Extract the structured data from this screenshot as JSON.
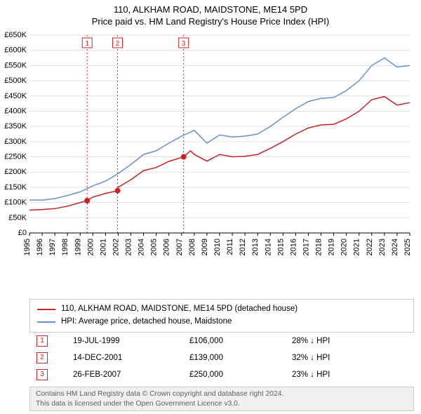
{
  "title": {
    "line1": "110, ALKHAM ROAD, MAIDSTONE, ME14 5PD",
    "line2": "Price paid vs. HM Land Registry's House Price Index (HPI)",
    "fontsize": 13,
    "color": "#000000"
  },
  "chart": {
    "type": "line",
    "background_color": "#ffffff",
    "x": {
      "min": 1995,
      "max": 2025,
      "ticks": [
        1995,
        1996,
        1997,
        1998,
        1999,
        2000,
        2001,
        2002,
        2003,
        2004,
        2005,
        2006,
        2007,
        2008,
        2009,
        2010,
        2011,
        2012,
        2013,
        2014,
        2015,
        2016,
        2017,
        2018,
        2019,
        2020,
        2021,
        2022,
        2023,
        2024,
        2025
      ],
      "tick_fontsize": 11,
      "tick_rotation": -90
    },
    "y": {
      "min": 0,
      "max": 650000,
      "tick_step": 50000,
      "tick_labels": [
        "£0",
        "£50K",
        "£100K",
        "£150K",
        "£200K",
        "£250K",
        "£300K",
        "£350K",
        "£400K",
        "£450K",
        "£500K",
        "£550K",
        "£600K",
        "£650K"
      ],
      "tick_fontsize": 11,
      "grid_color": "#e0e0e0"
    },
    "series": [
      {
        "name": "property",
        "label": "110, ALKHAM ROAD, MAIDSTONE, ME14 5PD (detached house)",
        "color": "#c72424",
        "line_width": 1.5,
        "points": [
          [
            1995,
            75000
          ],
          [
            1996,
            77000
          ],
          [
            1997,
            80000
          ],
          [
            1998,
            88000
          ],
          [
            1999,
            100000
          ],
          [
            1999.55,
            106000
          ],
          [
            2000,
            118000
          ],
          [
            2001,
            130000
          ],
          [
            2001.95,
            139000
          ],
          [
            2002,
            150000
          ],
          [
            2003,
            175000
          ],
          [
            2004,
            205000
          ],
          [
            2005,
            215000
          ],
          [
            2006,
            235000
          ],
          [
            2007.16,
            250000
          ],
          [
            2007.7,
            270000
          ],
          [
            2008,
            258000
          ],
          [
            2009,
            236000
          ],
          [
            2010,
            258000
          ],
          [
            2011,
            250000
          ],
          [
            2012,
            252000
          ],
          [
            2013,
            258000
          ],
          [
            2014,
            278000
          ],
          [
            2015,
            300000
          ],
          [
            2016,
            325000
          ],
          [
            2017,
            345000
          ],
          [
            2018,
            355000
          ],
          [
            2019,
            357000
          ],
          [
            2020,
            375000
          ],
          [
            2021,
            400000
          ],
          [
            2022,
            438000
          ],
          [
            2023,
            448000
          ],
          [
            2024,
            420000
          ],
          [
            2025,
            428000
          ]
        ]
      },
      {
        "name": "hpi",
        "label": "HPI: Average price, detached house, Maidstone",
        "color": "#6a8fd1",
        "line_width": 1.5,
        "points": [
          [
            1995,
            108000
          ],
          [
            1996,
            108000
          ],
          [
            1997,
            113000
          ],
          [
            1998,
            123000
          ],
          [
            1999,
            135000
          ],
          [
            2000,
            155000
          ],
          [
            2001,
            170000
          ],
          [
            2002,
            195000
          ],
          [
            2003,
            225000
          ],
          [
            2004,
            258000
          ],
          [
            2005,
            270000
          ],
          [
            2006,
            295000
          ],
          [
            2007,
            318000
          ],
          [
            2008,
            337000
          ],
          [
            2009,
            295000
          ],
          [
            2010,
            322000
          ],
          [
            2011,
            315000
          ],
          [
            2012,
            318000
          ],
          [
            2013,
            325000
          ],
          [
            2014,
            350000
          ],
          [
            2015,
            380000
          ],
          [
            2016,
            408000
          ],
          [
            2017,
            432000
          ],
          [
            2018,
            442000
          ],
          [
            2019,
            445000
          ],
          [
            2020,
            468000
          ],
          [
            2021,
            500000
          ],
          [
            2022,
            550000
          ],
          [
            2023,
            575000
          ],
          [
            2024,
            545000
          ],
          [
            2025,
            550000
          ]
        ]
      }
    ],
    "sale_markers": {
      "color": "#c72424",
      "dot_radius": 4,
      "vline_dash": "2 3",
      "box_size": 14,
      "items": [
        {
          "idx": "1",
          "x": 1999.55,
          "y": 106000
        },
        {
          "idx": "2",
          "x": 2001.95,
          "y": 139000
        },
        {
          "idx": "3",
          "x": 2007.16,
          "y": 250000
        }
      ]
    }
  },
  "legend": {
    "border_color": "#cccccc",
    "items": [
      {
        "color": "#c72424",
        "label": "110, ALKHAM ROAD, MAIDSTONE, ME14 5PD (detached house)"
      },
      {
        "color": "#6a8fd1",
        "label": "HPI: Average price, detached house, Maidstone"
      }
    ]
  },
  "sales_table": {
    "marker_color": "#c72424",
    "rows": [
      {
        "idx": "1",
        "date": "19-JUL-1999",
        "price": "£106,000",
        "pct": "28% ↓ HPI"
      },
      {
        "idx": "2",
        "date": "14-DEC-2001",
        "price": "£139,000",
        "pct": "32% ↓ HPI"
      },
      {
        "idx": "3",
        "date": "26-FEB-2007",
        "price": "£250,000",
        "pct": "23% ↓ HPI"
      }
    ]
  },
  "footer": {
    "line1": "Contains HM Land Registry data © Crown copyright and database right 2024.",
    "line2": "This data is licensed under the Open Government Licence v3.0.",
    "bg": "#f0f0f0",
    "border": "#cccccc",
    "text_color": "#606060"
  }
}
